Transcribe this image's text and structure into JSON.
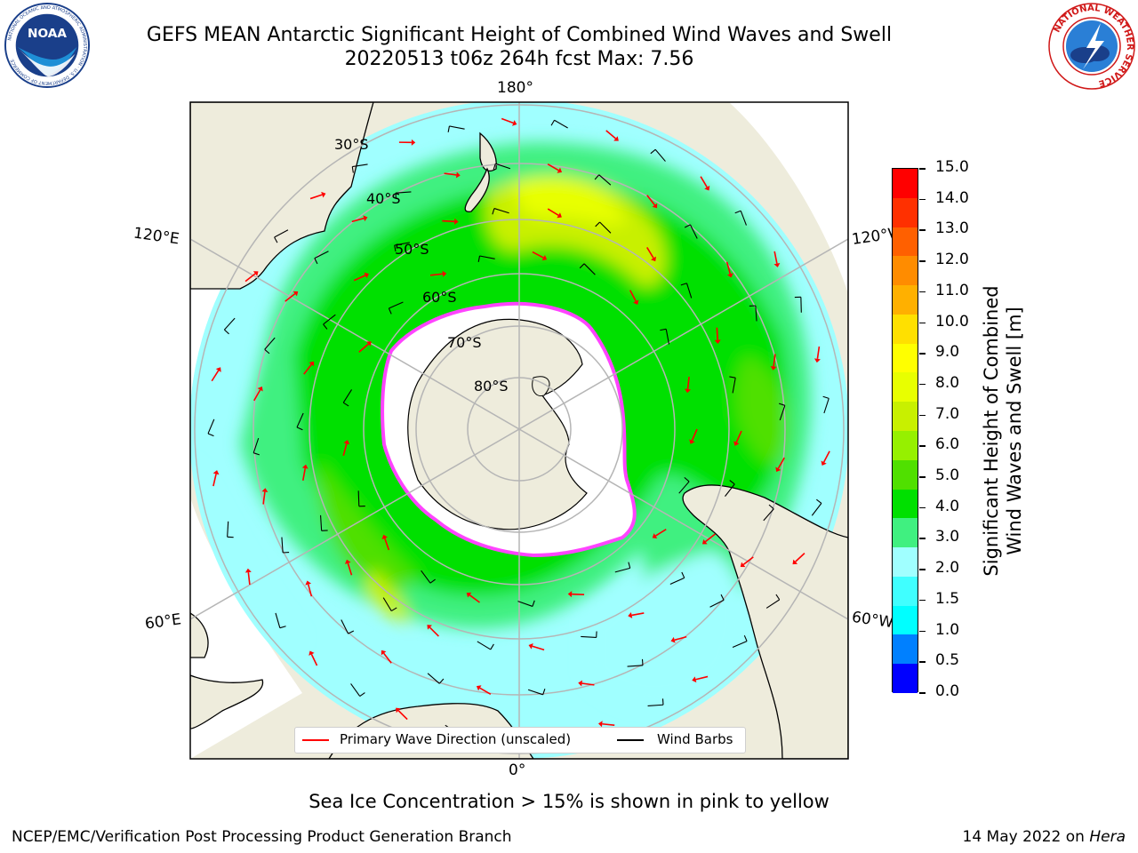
{
  "header": {
    "title_line1": "GEFS MEAN Antarctic Significant Height of Combined Wind Waves and Swell",
    "title_line2": "20220513 t06z 264h fcst   Max: 7.56"
  },
  "logos": {
    "noaa": {
      "text": "NOAA",
      "ring_text": "NATIONAL OCEANIC AND ATMOSPHERIC ADMINISTRATION · U.S. DEPARTMENT OF COMMERCE"
    },
    "nws": {
      "ring_text": "NATIONAL WEATHER SERVICE"
    }
  },
  "map": {
    "projection": "south-polar-stereographic",
    "longitude_labels": {
      "top": "180°",
      "bottom": "0°",
      "upper_left": "120°E",
      "lower_left": "60°E",
      "upper_right": "120°W",
      "lower_right": "60°W"
    },
    "latitude_labels": [
      "30°S",
      "40°S",
      "50°S",
      "60°S",
      "70°S",
      "80°S"
    ],
    "colors": {
      "land": "#eeecdc",
      "ice_interior": "#ffffff",
      "ice_edge": "#ff44ff",
      "grid": "#b5b5b5"
    }
  },
  "colorbar": {
    "title_line1": "Significant Height of Combined",
    "title_line2": "Wind Waves and Swell [m]",
    "labels": [
      "15.0",
      "14.0",
      "13.0",
      "12.0",
      "11.0",
      "10.0",
      "9.0",
      "8.0",
      "7.0",
      "6.0",
      "5.0",
      "4.0",
      "3.0",
      "2.0",
      "1.5",
      "1.0",
      "0.5",
      "0.0"
    ],
    "colors_top_to_bottom": [
      "#ff0000",
      "#ff3000",
      "#ff6000",
      "#ff8c00",
      "#ffb000",
      "#ffe000",
      "#ffff00",
      "#e8ff00",
      "#c8f000",
      "#96f000",
      "#50e000",
      "#00e000",
      "#40f080",
      "#a0ffff",
      "#40ffff",
      "#00ffff",
      "#0080ff",
      "#0000ff"
    ]
  },
  "legend": {
    "wave_direction": "Primary Wave Direction (unscaled)",
    "wind_barbs": "Wind Barbs",
    "wave_color": "#ff0000",
    "barb_color": "#000000"
  },
  "notes": {
    "ice": "Sea Ice Concentration > 15% is shown in pink to yellow"
  },
  "footer": {
    "producer": "NCEP/EMC/Verification Post Processing Product Generation Branch",
    "date": "14 May 2022 on ",
    "machine": "Hera"
  }
}
